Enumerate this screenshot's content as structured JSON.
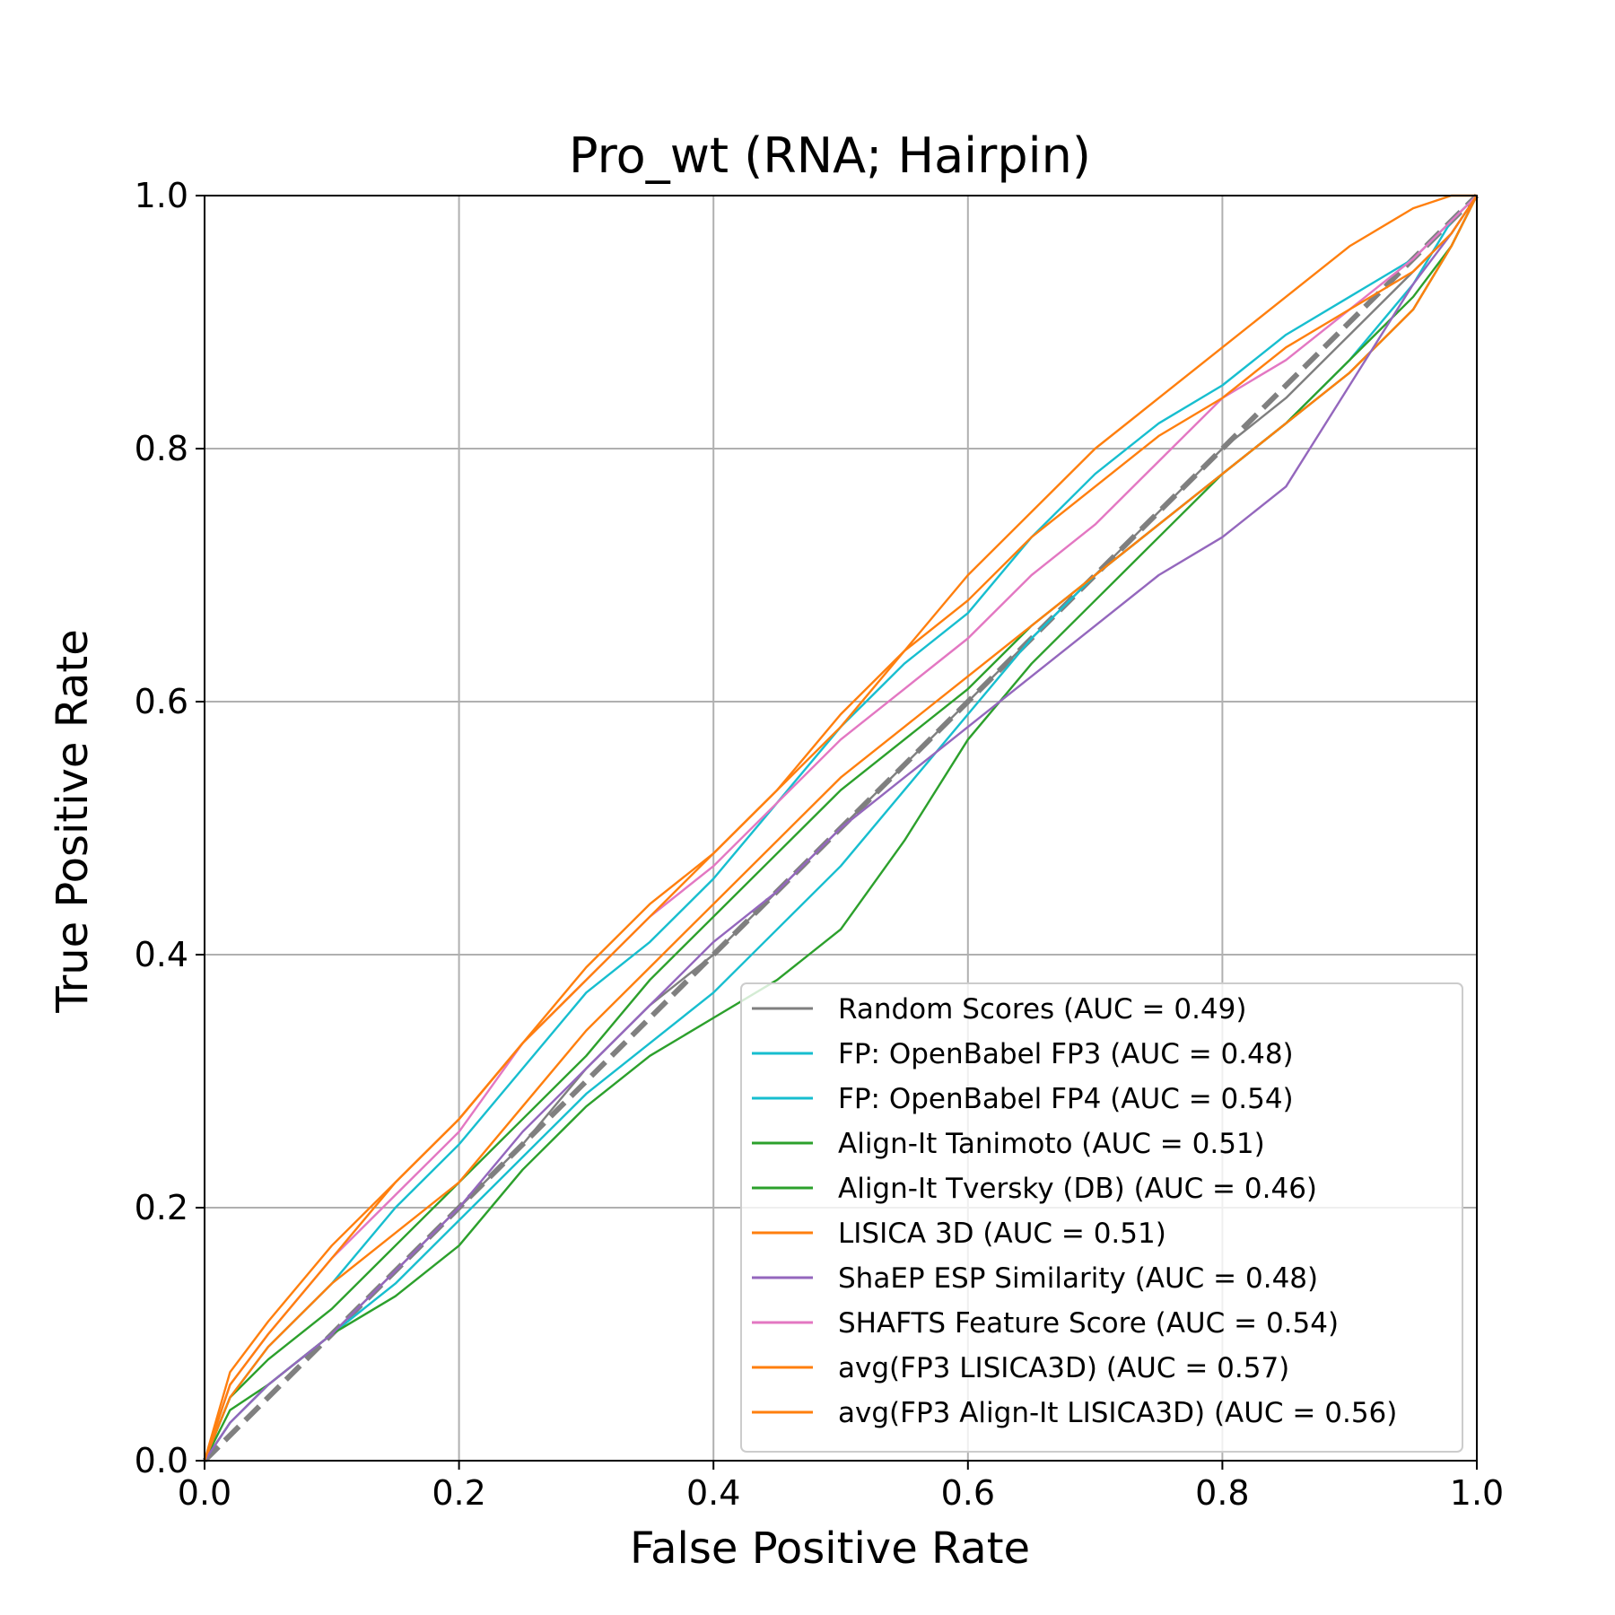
{
  "chart_data": {
    "type": "line",
    "title": "Pro_wt (RNA; Hairpin)",
    "xlabel": "False Positive Rate",
    "ylabel": "True Positive Rate",
    "xlim": [
      0,
      1
    ],
    "ylim": [
      0,
      1
    ],
    "xticks": [
      0.0,
      0.2,
      0.4,
      0.6,
      0.8,
      1.0
    ],
    "yticks": [
      0.0,
      0.2,
      0.4,
      0.6,
      0.8,
      1.0
    ],
    "xtick_labels": [
      "0.0",
      "0.2",
      "0.4",
      "0.6",
      "0.8",
      "1.0"
    ],
    "ytick_labels": [
      "0.0",
      "0.2",
      "0.4",
      "0.6",
      "0.8",
      "1.0"
    ],
    "grid": true,
    "legend_position": "lower-right",
    "diagonal": {
      "x": [
        0,
        1
      ],
      "y": [
        0,
        1
      ],
      "color": "#808080",
      "style": "dashed"
    },
    "series": [
      {
        "name": "Random Scores (AUC = 0.49)",
        "color": "#7f7f7f",
        "x": [
          0,
          0.02,
          0.05,
          0.1,
          0.15,
          0.2,
          0.25,
          0.3,
          0.35,
          0.4,
          0.45,
          0.5,
          0.55,
          0.6,
          0.65,
          0.7,
          0.75,
          0.8,
          0.85,
          0.9,
          0.95,
          0.98,
          1.0
        ],
        "y": [
          0,
          0.03,
          0.06,
          0.1,
          0.15,
          0.2,
          0.25,
          0.31,
          0.36,
          0.4,
          0.45,
          0.5,
          0.55,
          0.6,
          0.65,
          0.7,
          0.75,
          0.8,
          0.84,
          0.89,
          0.94,
          0.97,
          1.0
        ]
      },
      {
        "name": "FP: OpenBabel FP3 (AUC = 0.48)",
        "color": "#17becf",
        "x": [
          0,
          0.02,
          0.05,
          0.1,
          0.15,
          0.2,
          0.25,
          0.3,
          0.35,
          0.4,
          0.45,
          0.5,
          0.55,
          0.6,
          0.65,
          0.7,
          0.75,
          0.8,
          0.85,
          0.9,
          0.95,
          0.98,
          1.0
        ],
        "y": [
          0,
          0.03,
          0.06,
          0.1,
          0.14,
          0.19,
          0.24,
          0.29,
          0.33,
          0.37,
          0.42,
          0.47,
          0.53,
          0.59,
          0.65,
          0.7,
          0.74,
          0.78,
          0.82,
          0.87,
          0.93,
          0.98,
          1.0
        ]
      },
      {
        "name": "FP: OpenBabel FP4 (AUC = 0.54)",
        "color": "#17becf",
        "x": [
          0,
          0.02,
          0.05,
          0.1,
          0.15,
          0.2,
          0.25,
          0.3,
          0.35,
          0.4,
          0.45,
          0.5,
          0.55,
          0.6,
          0.65,
          0.7,
          0.75,
          0.8,
          0.85,
          0.9,
          0.95,
          0.98,
          1.0
        ],
        "y": [
          0,
          0.05,
          0.09,
          0.14,
          0.2,
          0.25,
          0.31,
          0.37,
          0.41,
          0.46,
          0.52,
          0.58,
          0.63,
          0.67,
          0.73,
          0.78,
          0.82,
          0.85,
          0.89,
          0.92,
          0.95,
          0.98,
          1.0
        ]
      },
      {
        "name": "Align-It Tanimoto (AUC = 0.51)",
        "color": "#2ca02c",
        "x": [
          0,
          0.02,
          0.05,
          0.1,
          0.15,
          0.2,
          0.25,
          0.3,
          0.35,
          0.4,
          0.45,
          0.5,
          0.55,
          0.6,
          0.65,
          0.7,
          0.75,
          0.8,
          0.85,
          0.9,
          0.95,
          0.98,
          1.0
        ],
        "y": [
          0,
          0.05,
          0.08,
          0.12,
          0.17,
          0.22,
          0.27,
          0.32,
          0.38,
          0.43,
          0.48,
          0.53,
          0.57,
          0.61,
          0.66,
          0.7,
          0.74,
          0.78,
          0.82,
          0.86,
          0.91,
          0.96,
          1.0
        ]
      },
      {
        "name": "Align-It Tversky (DB) (AUC = 0.46)",
        "color": "#2ca02c",
        "x": [
          0,
          0.02,
          0.05,
          0.1,
          0.15,
          0.2,
          0.25,
          0.3,
          0.35,
          0.4,
          0.45,
          0.5,
          0.55,
          0.6,
          0.65,
          0.7,
          0.75,
          0.8,
          0.85,
          0.9,
          0.95,
          0.98,
          1.0
        ],
        "y": [
          0,
          0.04,
          0.06,
          0.1,
          0.13,
          0.17,
          0.23,
          0.28,
          0.32,
          0.35,
          0.38,
          0.42,
          0.49,
          0.57,
          0.63,
          0.68,
          0.73,
          0.78,
          0.82,
          0.87,
          0.92,
          0.96,
          1.0
        ]
      },
      {
        "name": "LISICA 3D (AUC = 0.51)",
        "color": "#ff7f0e",
        "x": [
          0,
          0.02,
          0.05,
          0.1,
          0.15,
          0.2,
          0.25,
          0.3,
          0.35,
          0.4,
          0.45,
          0.5,
          0.55,
          0.6,
          0.65,
          0.7,
          0.75,
          0.8,
          0.85,
          0.9,
          0.95,
          0.98,
          1.0
        ],
        "y": [
          0,
          0.05,
          0.09,
          0.14,
          0.18,
          0.22,
          0.28,
          0.34,
          0.39,
          0.44,
          0.49,
          0.54,
          0.58,
          0.62,
          0.66,
          0.7,
          0.74,
          0.78,
          0.82,
          0.86,
          0.91,
          0.96,
          1.0
        ]
      },
      {
        "name": "ShaEP ESP Similarity (AUC = 0.48)",
        "color": "#9467bd",
        "x": [
          0,
          0.02,
          0.05,
          0.1,
          0.15,
          0.2,
          0.25,
          0.3,
          0.35,
          0.4,
          0.45,
          0.5,
          0.55,
          0.6,
          0.65,
          0.7,
          0.75,
          0.8,
          0.85,
          0.9,
          0.95,
          0.98,
          1.0
        ],
        "y": [
          0,
          0.03,
          0.06,
          0.1,
          0.15,
          0.2,
          0.26,
          0.31,
          0.36,
          0.41,
          0.45,
          0.5,
          0.54,
          0.58,
          0.62,
          0.66,
          0.7,
          0.73,
          0.77,
          0.85,
          0.93,
          0.97,
          1.0
        ]
      },
      {
        "name": "SHAFTS Feature Score (AUC = 0.54)",
        "color": "#e377c2",
        "x": [
          0,
          0.02,
          0.05,
          0.1,
          0.15,
          0.2,
          0.25,
          0.3,
          0.35,
          0.4,
          0.45,
          0.5,
          0.55,
          0.6,
          0.65,
          0.7,
          0.75,
          0.8,
          0.85,
          0.9,
          0.95,
          0.98,
          1.0
        ],
        "y": [
          0,
          0.06,
          0.1,
          0.16,
          0.21,
          0.26,
          0.33,
          0.38,
          0.43,
          0.47,
          0.52,
          0.57,
          0.61,
          0.65,
          0.7,
          0.74,
          0.79,
          0.84,
          0.87,
          0.91,
          0.95,
          0.98,
          1.0
        ]
      },
      {
        "name": "avg(FP3 LISICA3D) (AUC = 0.57)",
        "color": "#ff7f0e",
        "x": [
          0,
          0.02,
          0.05,
          0.1,
          0.15,
          0.2,
          0.25,
          0.3,
          0.35,
          0.4,
          0.45,
          0.5,
          0.55,
          0.6,
          0.65,
          0.7,
          0.75,
          0.8,
          0.85,
          0.9,
          0.95,
          0.98,
          1.0
        ],
        "y": [
          0,
          0.07,
          0.11,
          0.17,
          0.22,
          0.27,
          0.33,
          0.39,
          0.44,
          0.48,
          0.53,
          0.59,
          0.64,
          0.7,
          0.75,
          0.8,
          0.84,
          0.88,
          0.92,
          0.96,
          0.99,
          1.0,
          1.0
        ]
      },
      {
        "name": "avg(FP3 Align-It LISICA3D) (AUC = 0.56)",
        "color": "#ff7f0e",
        "x": [
          0,
          0.02,
          0.05,
          0.1,
          0.15,
          0.2,
          0.25,
          0.3,
          0.35,
          0.4,
          0.45,
          0.5,
          0.55,
          0.6,
          0.65,
          0.7,
          0.75,
          0.8,
          0.85,
          0.9,
          0.95,
          0.98,
          1.0
        ],
        "y": [
          0,
          0.06,
          0.1,
          0.16,
          0.22,
          0.27,
          0.33,
          0.38,
          0.43,
          0.48,
          0.53,
          0.58,
          0.64,
          0.68,
          0.73,
          0.77,
          0.81,
          0.84,
          0.88,
          0.91,
          0.94,
          0.97,
          1.0
        ]
      }
    ]
  }
}
